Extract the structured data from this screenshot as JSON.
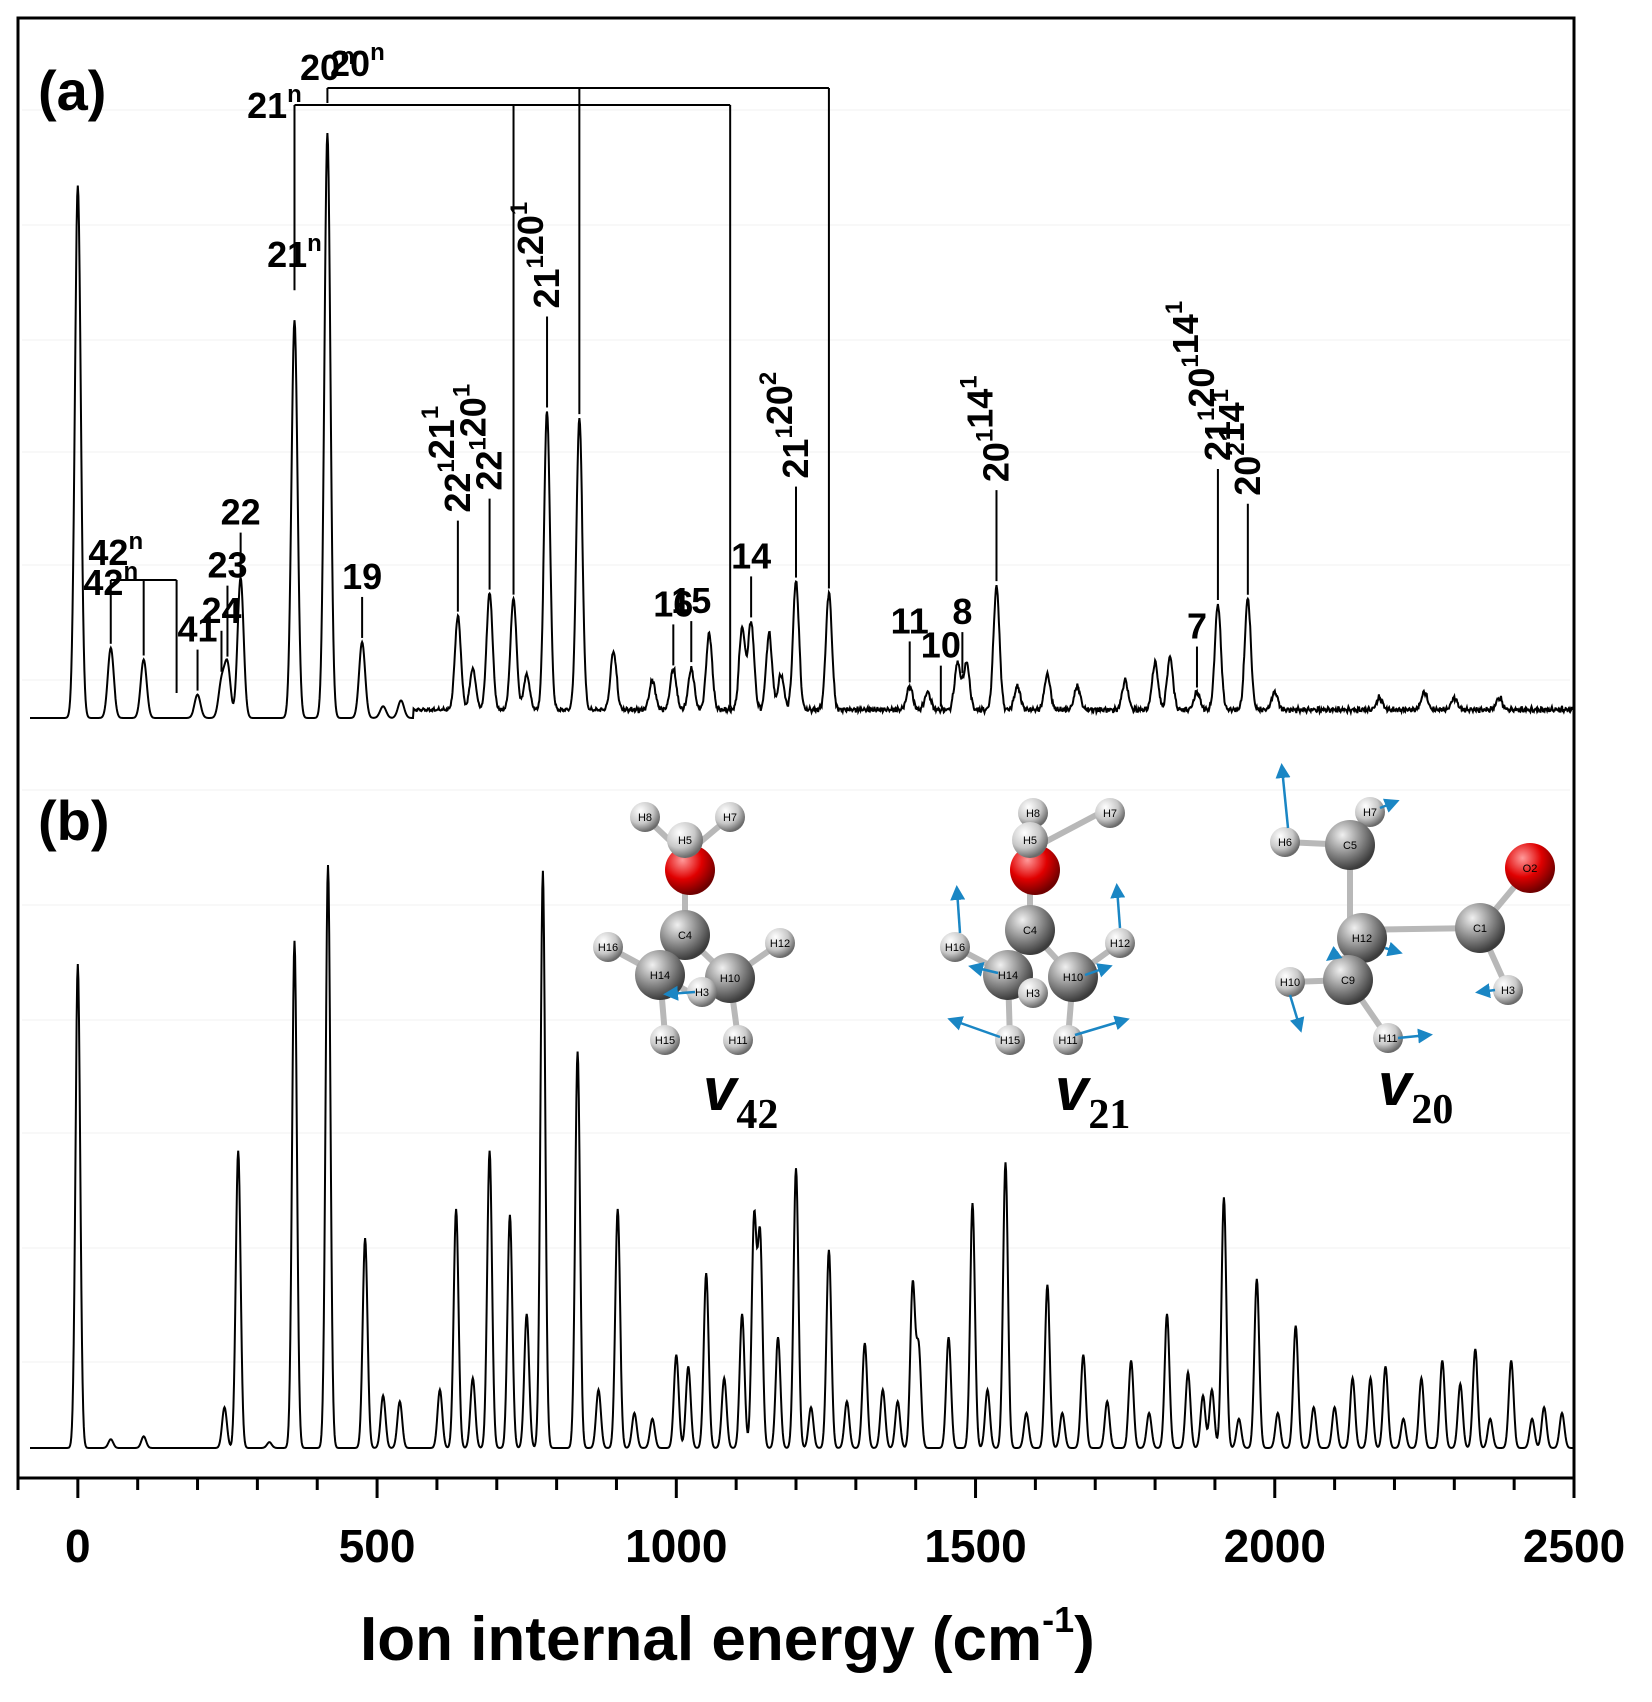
{
  "chart_data": [
    {
      "panel": "(a)",
      "type": "line",
      "xlim": [
        -100,
        2500
      ],
      "xticks": [
        0,
        500,
        1000,
        1500,
        2000,
        2500
      ],
      "xlabel": "Ion internal energy (cm-1)",
      "peaks": [
        {
          "x": 0,
          "h": 0.91
        },
        {
          "x": 55,
          "h": 0.12
        },
        {
          "x": 110,
          "h": 0.1
        },
        {
          "x": 200,
          "h": 0.04
        },
        {
          "x": 240,
          "h": 0.06
        },
        {
          "x": 250,
          "h": 0.09
        },
        {
          "x": 272,
          "h": 0.24
        },
        {
          "x": 362,
          "h": 0.68
        },
        {
          "x": 417,
          "h": 1.0
        },
        {
          "x": 475,
          "h": 0.13
        },
        {
          "x": 510,
          "h": 0.02
        },
        {
          "x": 540,
          "h": 0.03
        },
        {
          "x": 635,
          "h": 0.16
        },
        {
          "x": 660,
          "h": 0.07
        },
        {
          "x": 688,
          "h": 0.2
        },
        {
          "x": 728,
          "h": 0.19
        },
        {
          "x": 750,
          "h": 0.06
        },
        {
          "x": 784,
          "h": 0.51
        },
        {
          "x": 838,
          "h": 0.5
        },
        {
          "x": 895,
          "h": 0.1
        },
        {
          "x": 960,
          "h": 0.05
        },
        {
          "x": 995,
          "h": 0.07
        },
        {
          "x": 1025,
          "h": 0.07
        },
        {
          "x": 1055,
          "h": 0.13
        },
        {
          "x": 1110,
          "h": 0.14
        },
        {
          "x": 1125,
          "h": 0.15
        },
        {
          "x": 1155,
          "h": 0.13
        },
        {
          "x": 1175,
          "h": 0.06
        },
        {
          "x": 1200,
          "h": 0.22
        },
        {
          "x": 1255,
          "h": 0.2
        },
        {
          "x": 1390,
          "h": 0.04
        },
        {
          "x": 1420,
          "h": 0.03
        },
        {
          "x": 1470,
          "h": 0.08
        },
        {
          "x": 1485,
          "h": 0.08
        },
        {
          "x": 1535,
          "h": 0.21
        },
        {
          "x": 1570,
          "h": 0.04
        },
        {
          "x": 1620,
          "h": 0.06
        },
        {
          "x": 1670,
          "h": 0.04
        },
        {
          "x": 1750,
          "h": 0.05
        },
        {
          "x": 1800,
          "h": 0.08
        },
        {
          "x": 1825,
          "h": 0.09
        },
        {
          "x": 1870,
          "h": 0.03
        },
        {
          "x": 1905,
          "h": 0.18
        },
        {
          "x": 1955,
          "h": 0.19
        },
        {
          "x": 2000,
          "h": 0.03
        },
        {
          "x": 2175,
          "h": 0.02
        },
        {
          "x": 2250,
          "h": 0.03
        },
        {
          "x": 2300,
          "h": 0.02
        },
        {
          "x": 2375,
          "h": 0.02
        }
      ],
      "annotations": [
        {
          "base": "42",
          "sup": "n",
          "x": 55
        },
        {
          "base": "41",
          "sup": "",
          "x": 200
        },
        {
          "base": "24",
          "sup": "",
          "x": 240
        },
        {
          "base": "23",
          "sup": "",
          "x": 250
        },
        {
          "base": "22",
          "sup": "",
          "x": 272
        },
        {
          "base": "21",
          "sup": "n",
          "x": 362
        },
        {
          "base": "20",
          "sup": "n",
          "x": 417
        },
        {
          "base": "19",
          "sup": "",
          "x": 475
        },
        {
          "base": "22",
          "sup": "1",
          "base2": "21",
          "sup2": "1",
          "x": 635
        },
        {
          "base": "22",
          "sup": "1",
          "base2": "20",
          "sup2": "1",
          "x": 688
        },
        {
          "base": "21",
          "sup": "1",
          "base2": "20",
          "sup2": "1",
          "x": 784
        },
        {
          "base": "16",
          "sup": "",
          "x": 995
        },
        {
          "base": "15",
          "sup": "",
          "x": 1025
        },
        {
          "base": "14",
          "sup": "",
          "x": 1125
        },
        {
          "base": "21",
          "sup": "1",
          "base2": "20",
          "sup2": "2",
          "x": 1200
        },
        {
          "base": "11",
          "sup": "",
          "x": 1390
        },
        {
          "base": "10",
          "sup": "",
          "x": 1442
        },
        {
          "base": "8",
          "sup": "",
          "x": 1478
        },
        {
          "base": "20",
          "sup": "1",
          "base2": "14",
          "sup2": "1",
          "x": 1535
        },
        {
          "base": "7",
          "sup": "",
          "x": 1870
        },
        {
          "base": "21",
          "sup": "1",
          "base2": "20",
          "sup2": "1",
          "base3": "14",
          "sup3": "1",
          "x": 1905
        },
        {
          "base": "20",
          "sup": "2",
          "base2": "14",
          "sup2": "1",
          "x": 1955
        }
      ],
      "progressions": [
        {
          "label": "42n",
          "x": [
            55,
            110,
            165
          ]
        },
        {
          "label": "21n",
          "x": [
            362,
            728,
            1090
          ]
        },
        {
          "label": "20n",
          "x": [
            417,
            838,
            1255
          ]
        }
      ]
    },
    {
      "panel": "(b)",
      "type": "line",
      "xlim": [
        -100,
        2500
      ],
      "peaks": [
        {
          "x": 0,
          "h": 0.83
        },
        {
          "x": 55,
          "h": 0.015
        },
        {
          "x": 110,
          "h": 0.02
        },
        {
          "x": 245,
          "h": 0.07
        },
        {
          "x": 268,
          "h": 0.51
        },
        {
          "x": 320,
          "h": 0.01
        },
        {
          "x": 362,
          "h": 0.87
        },
        {
          "x": 418,
          "h": 1.0
        },
        {
          "x": 480,
          "h": 0.36
        },
        {
          "x": 510,
          "h": 0.09
        },
        {
          "x": 538,
          "h": 0.08
        },
        {
          "x": 605,
          "h": 0.1
        },
        {
          "x": 632,
          "h": 0.41
        },
        {
          "x": 660,
          "h": 0.12
        },
        {
          "x": 688,
          "h": 0.51
        },
        {
          "x": 722,
          "h": 0.4
        },
        {
          "x": 750,
          "h": 0.23
        },
        {
          "x": 777,
          "h": 0.99
        },
        {
          "x": 835,
          "h": 0.68
        },
        {
          "x": 870,
          "h": 0.1
        },
        {
          "x": 902,
          "h": 0.41
        },
        {
          "x": 930,
          "h": 0.06
        },
        {
          "x": 960,
          "h": 0.05
        },
        {
          "x": 1000,
          "h": 0.16
        },
        {
          "x": 1020,
          "h": 0.14
        },
        {
          "x": 1050,
          "h": 0.3
        },
        {
          "x": 1080,
          "h": 0.12
        },
        {
          "x": 1110,
          "h": 0.23
        },
        {
          "x": 1130,
          "h": 0.39
        },
        {
          "x": 1140,
          "h": 0.36
        },
        {
          "x": 1170,
          "h": 0.19
        },
        {
          "x": 1200,
          "h": 0.48
        },
        {
          "x": 1225,
          "h": 0.07
        },
        {
          "x": 1255,
          "h": 0.34
        },
        {
          "x": 1285,
          "h": 0.08
        },
        {
          "x": 1315,
          "h": 0.18
        },
        {
          "x": 1345,
          "h": 0.1
        },
        {
          "x": 1370,
          "h": 0.08
        },
        {
          "x": 1395,
          "h": 0.28
        },
        {
          "x": 1405,
          "h": 0.17
        },
        {
          "x": 1455,
          "h": 0.19
        },
        {
          "x": 1495,
          "h": 0.42
        },
        {
          "x": 1520,
          "h": 0.1
        },
        {
          "x": 1550,
          "h": 0.49
        },
        {
          "x": 1585,
          "h": 0.06
        },
        {
          "x": 1620,
          "h": 0.28
        },
        {
          "x": 1645,
          "h": 0.06
        },
        {
          "x": 1680,
          "h": 0.16
        },
        {
          "x": 1720,
          "h": 0.08
        },
        {
          "x": 1760,
          "h": 0.15
        },
        {
          "x": 1790,
          "h": 0.06
        },
        {
          "x": 1820,
          "h": 0.23
        },
        {
          "x": 1855,
          "h": 0.13
        },
        {
          "x": 1880,
          "h": 0.09
        },
        {
          "x": 1895,
          "h": 0.1
        },
        {
          "x": 1915,
          "h": 0.43
        },
        {
          "x": 1940,
          "h": 0.05
        },
        {
          "x": 1970,
          "h": 0.29
        },
        {
          "x": 2005,
          "h": 0.06
        },
        {
          "x": 2035,
          "h": 0.21
        },
        {
          "x": 2065,
          "h": 0.07
        },
        {
          "x": 2100,
          "h": 0.07
        },
        {
          "x": 2130,
          "h": 0.12
        },
        {
          "x": 2160,
          "h": 0.12
        },
        {
          "x": 2185,
          "h": 0.14
        },
        {
          "x": 2215,
          "h": 0.05
        },
        {
          "x": 2245,
          "h": 0.12
        },
        {
          "x": 2280,
          "h": 0.15
        },
        {
          "x": 2310,
          "h": 0.11
        },
        {
          "x": 2335,
          "h": 0.17
        },
        {
          "x": 2360,
          "h": 0.05
        },
        {
          "x": 2395,
          "h": 0.15
        },
        {
          "x": 2430,
          "h": 0.05
        },
        {
          "x": 2450,
          "h": 0.07
        },
        {
          "x": 2480,
          "h": 0.06
        }
      ]
    }
  ],
  "labels": {
    "panel_a": "(a)",
    "panel_b": "(b)",
    "xaxis_title_main": "Ion internal energy (cm",
    "xaxis_title_sup": "-1",
    "xaxis_title_end": ")",
    "tick_labels": [
      "0",
      "500",
      "1000",
      "1500",
      "2000",
      "2500"
    ]
  },
  "molecules": [
    {
      "mode": "v",
      "sub": "42",
      "atoms": [
        "H8",
        "H7",
        "H5",
        "C4",
        "H16",
        "H12",
        "H14",
        "H10",
        "H3",
        "H15",
        "H11"
      ]
    },
    {
      "mode": "v",
      "sub": "21",
      "atoms": [
        "H8",
        "H7",
        "H5",
        "C4",
        "H16",
        "H12",
        "H14",
        "H10",
        "H3",
        "H15",
        "H11"
      ]
    },
    {
      "mode": "v",
      "sub": "20",
      "atoms": [
        "H6",
        "H7",
        "C5",
        "O2",
        "H12",
        "C1",
        "H10",
        "C9",
        "H3",
        "H11"
      ]
    }
  ],
  "colors": {
    "line": "#000000",
    "oxygen": "#e00000",
    "carbon": "#8c8c8c",
    "hydrogen": "#d0d0d0",
    "arrow": "#1a86c4"
  }
}
